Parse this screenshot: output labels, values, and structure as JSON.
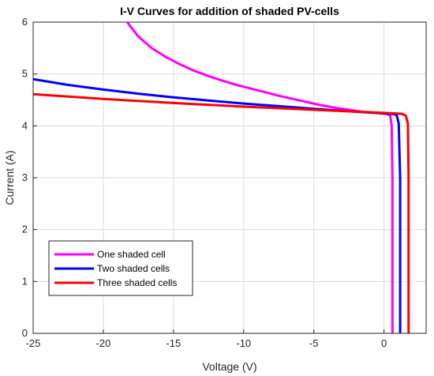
{
  "chart_data": {
    "type": "line",
    "title": "I-V Curves for addition of shaded PV-cells",
    "xlabel": "Voltage (V)",
    "ylabel": "Current (A)",
    "xlim": [
      -25,
      3
    ],
    "ylim": [
      0,
      6
    ],
    "xticks": [
      -25,
      -20,
      -15,
      -10,
      -5,
      0
    ],
    "yticks": [
      0,
      1,
      2,
      3,
      4,
      5,
      6
    ],
    "grid": true,
    "legend_position": "bottom-left",
    "series": [
      {
        "name": "One shaded cell",
        "color": "#ff00ff",
        "x": [
          -18.3,
          -17.5,
          -16.5,
          -15.5,
          -14.5,
          -13.5,
          -12.5,
          -11.5,
          -10.5,
          -9.5,
          -8.5,
          -7.5,
          -6.5,
          -5.5,
          -4.5,
          -3.5,
          -2.5,
          -1.5,
          -0.5,
          0.2,
          0.45,
          0.55,
          0.6,
          0.6
        ],
        "y": [
          6.0,
          5.72,
          5.49,
          5.32,
          5.18,
          5.06,
          4.96,
          4.87,
          4.79,
          4.72,
          4.65,
          4.58,
          4.52,
          4.46,
          4.4,
          4.35,
          4.31,
          4.27,
          4.25,
          4.23,
          4.2,
          4.0,
          3.0,
          0.0
        ]
      },
      {
        "name": "Two shaded cells",
        "color": "#0000ff",
        "x": [
          -25,
          -22.5,
          -20,
          -17.5,
          -15,
          -12.5,
          -10,
          -7.5,
          -5,
          -2.5,
          0,
          0.6,
          0.9,
          1.05,
          1.15,
          1.15
        ],
        "y": [
          4.9,
          4.79,
          4.7,
          4.62,
          4.55,
          4.49,
          4.43,
          4.38,
          4.33,
          4.28,
          4.24,
          4.23,
          4.21,
          4.05,
          3.0,
          0.0
        ]
      },
      {
        "name": "Three shaded cells",
        "color": "#ff0000",
        "x": [
          -25,
          -20,
          -15,
          -10,
          -5,
          0,
          0.8,
          1.3,
          1.55,
          1.7,
          1.75,
          1.75
        ],
        "y": [
          4.61,
          4.52,
          4.44,
          4.37,
          4.31,
          4.25,
          4.24,
          4.23,
          4.2,
          4.05,
          3.0,
          0.0
        ]
      }
    ]
  }
}
